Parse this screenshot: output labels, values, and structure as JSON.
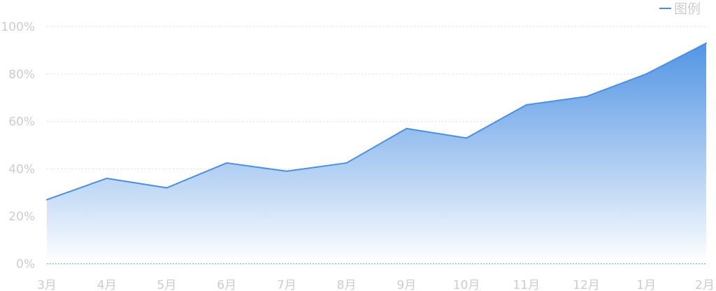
{
  "chart_data": {
    "type": "area",
    "categories": [
      "3月",
      "4月",
      "5月",
      "6月",
      "7月",
      "8月",
      "9月",
      "10月",
      "11月",
      "12月",
      "1月",
      "2月"
    ],
    "series": [
      {
        "name": "图例",
        "values": [
          27,
          36,
          32,
          42.5,
          39,
          42.5,
          57,
          53,
          67,
          70.5,
          80,
          93
        ]
      }
    ],
    "y_ticks": [
      "0%",
      "20%",
      "40%",
      "60%",
      "80%",
      "100%"
    ],
    "ylim": [
      0,
      100
    ],
    "grid": true,
    "legend_position": "top-right",
    "colors": {
      "line": "#4a8fe2",
      "fill_top": "#4a8fe2",
      "fill_bottom": "#ffffff",
      "grid": "#dddddd",
      "axis": "#5aa0b0",
      "text": "#cccccc"
    }
  }
}
